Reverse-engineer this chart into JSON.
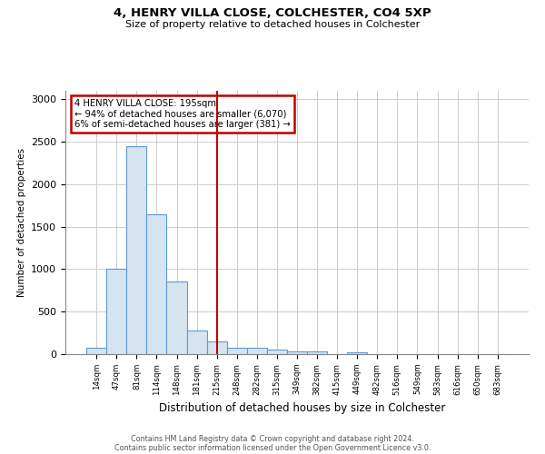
{
  "title1": "4, HENRY VILLA CLOSE, COLCHESTER, CO4 5XP",
  "title2": "Size of property relative to detached houses in Colchester",
  "xlabel": "Distribution of detached houses by size in Colchester",
  "ylabel": "Number of detached properties",
  "categories": [
    "14sqm",
    "47sqm",
    "81sqm",
    "114sqm",
    "148sqm",
    "181sqm",
    "215sqm",
    "248sqm",
    "282sqm",
    "315sqm",
    "349sqm",
    "382sqm",
    "415sqm",
    "449sqm",
    "482sqm",
    "516sqm",
    "549sqm",
    "583sqm",
    "616sqm",
    "650sqm",
    "683sqm"
  ],
  "values": [
    80,
    1000,
    2450,
    1650,
    850,
    280,
    150,
    70,
    70,
    50,
    30,
    30,
    0,
    20,
    0,
    0,
    0,
    0,
    0,
    0,
    0
  ],
  "bar_color": "#d6e4f0",
  "bar_edge_color": "#5b9bd5",
  "line_color": "#c00000",
  "line_x_index": 6,
  "annotation_text": "4 HENRY VILLA CLOSE: 195sqm\n← 94% of detached houses are smaller (6,070)\n6% of semi-detached houses are larger (381) →",
  "annotation_box_color": "#c00000",
  "ylim": [
    0,
    3100
  ],
  "yticks": [
    0,
    500,
    1000,
    1500,
    2000,
    2500,
    3000
  ],
  "footer1": "Contains HM Land Registry data © Crown copyright and database right 2024.",
  "footer2": "Contains public sector information licensed under the Open Government Licence v3.0.",
  "grid_color": "#cccccc",
  "background_color": "#ffffff"
}
